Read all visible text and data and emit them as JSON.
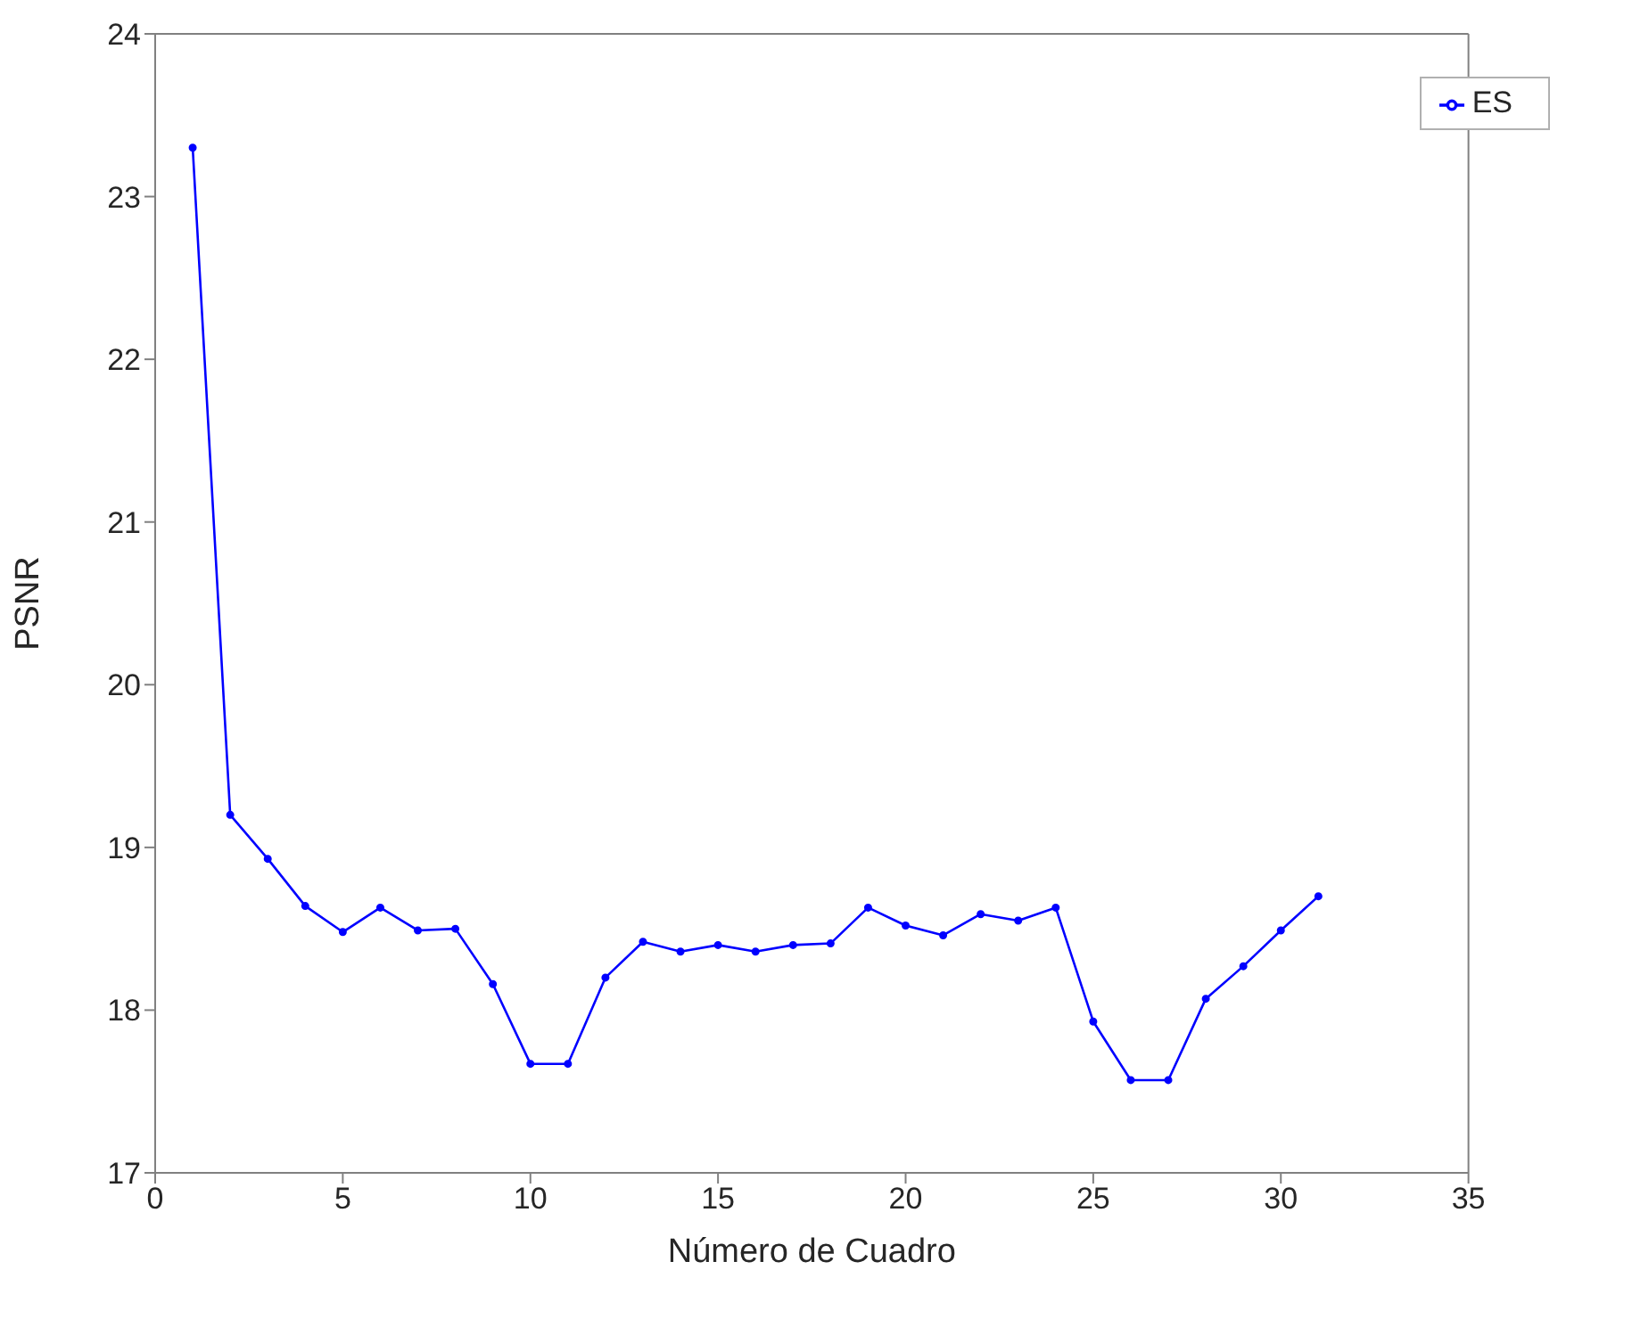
{
  "chart_data": {
    "type": "line",
    "xlabel": "Número de Cuadro",
    "ylabel": "PSNR",
    "x": [
      1,
      2,
      3,
      4,
      5,
      6,
      7,
      8,
      9,
      10,
      11,
      12,
      13,
      14,
      15,
      16,
      17,
      18,
      19,
      20,
      21,
      22,
      23,
      24,
      25,
      26,
      27,
      28,
      29,
      30,
      31
    ],
    "series": [
      {
        "name": "ES",
        "color": "#0000ff",
        "values": [
          23.3,
          19.2,
          18.93,
          18.64,
          18.48,
          18.63,
          18.49,
          18.5,
          18.16,
          17.67,
          17.67,
          18.2,
          18.42,
          18.36,
          18.4,
          18.36,
          18.4,
          18.41,
          18.63,
          18.52,
          18.46,
          18.59,
          18.55,
          18.63,
          17.93,
          17.57,
          17.57,
          18.07,
          18.27,
          18.49,
          18.7
        ]
      }
    ],
    "xlim": [
      0,
      35
    ],
    "xticks": [
      0,
      5,
      10,
      15,
      20,
      25,
      30,
      35
    ],
    "ylim": [
      17,
      24
    ],
    "yticks": [
      17,
      18,
      19,
      20,
      21,
      22,
      23,
      24
    ],
    "grid": false,
    "legend": "top right",
    "marker": "circle",
    "line_style": "solid"
  }
}
